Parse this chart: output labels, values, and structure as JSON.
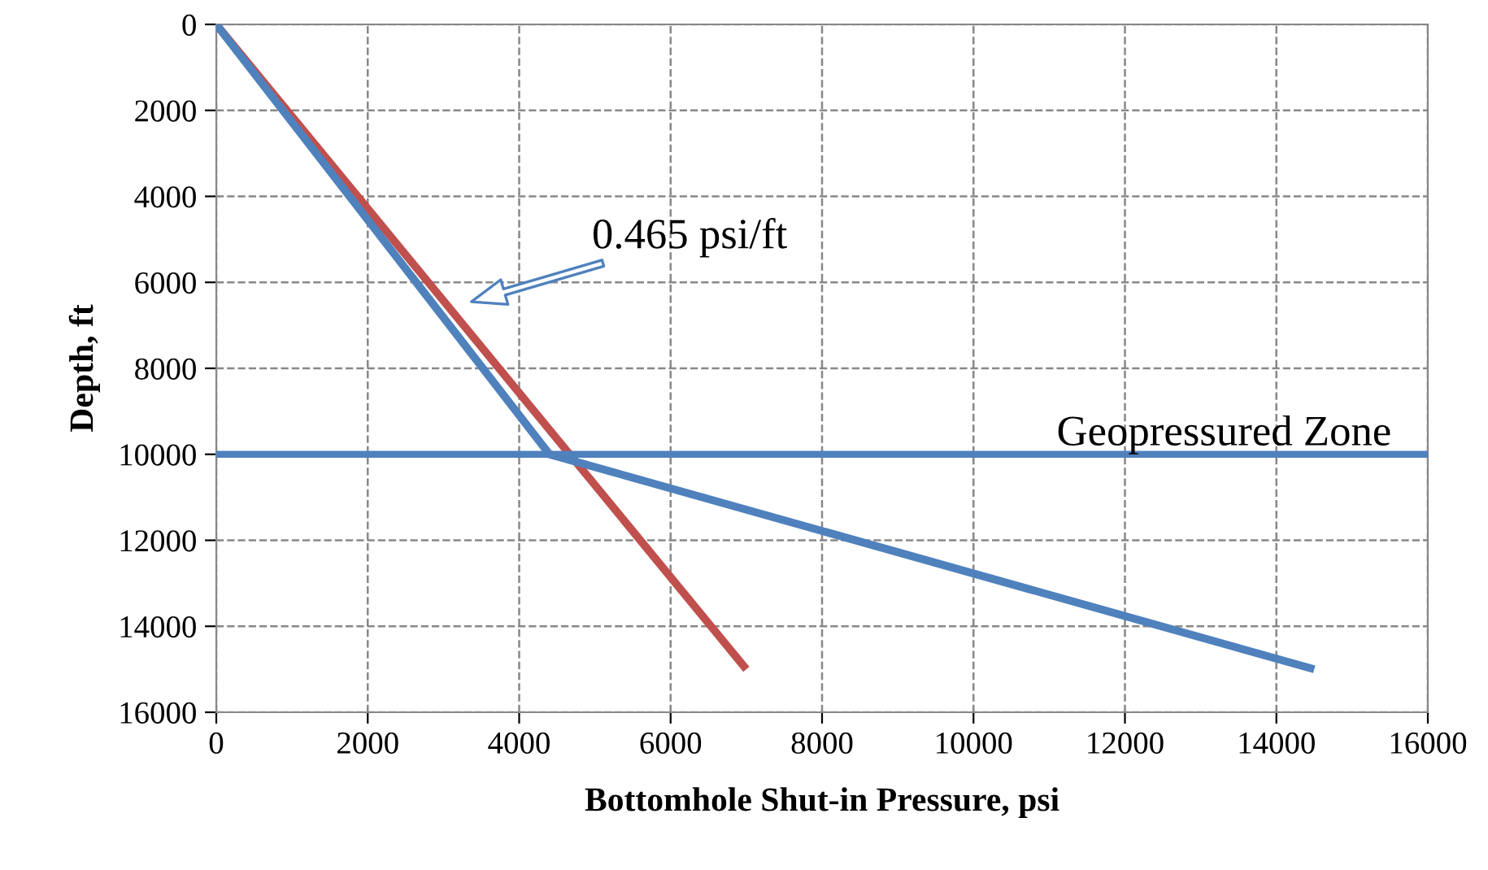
{
  "chart_data": {
    "type": "line",
    "xlabel": "Bottomhole Shut-in Pressure, psi",
    "ylabel": "Depth, ft",
    "series": [
      {
        "color": "#c0504d",
        "x": [
          0,
          7000
        ],
        "values": [
          0,
          15000
        ]
      },
      {
        "color": "#4f81bd",
        "x": [
          0,
          4400,
          14500
        ],
        "values": [
          0,
          10000,
          15000
        ]
      }
    ],
    "xlim": [
      0,
      16000
    ],
    "xticks": [
      0,
      2000,
      4000,
      6000,
      8000,
      10000,
      12000,
      14000,
      16000
    ],
    "ylim": [
      16000,
      0
    ],
    "yticks": [
      0,
      2000,
      4000,
      6000,
      8000,
      10000,
      12000,
      14000,
      16000
    ],
    "ref_lines": [
      {
        "axis": "y",
        "value": 10000,
        "label": "Geopressured Zone",
        "color": "#4f81bd"
      }
    ],
    "annotations": [
      "0.465 psi/ft"
    ],
    "grid": true,
    "legend": false,
    "marker": "none",
    "line_style": "solid"
  }
}
